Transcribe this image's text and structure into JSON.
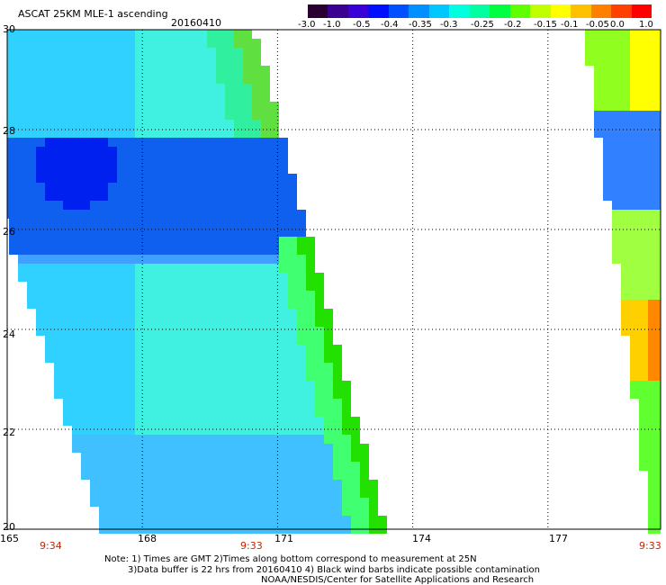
{
  "header": {
    "title": "ASCAT 25KM MLE-1 ascending",
    "date": "20160410"
  },
  "colorbar": {
    "labels": [
      "-3.0",
      "-1.0",
      "-0.5",
      "-0.4",
      "-0.35",
      "-0.3",
      "-0.25",
      "-0.2",
      "-0.15",
      "-0.1",
      "-0.05",
      "0.0",
      "1.0"
    ],
    "colors": [
      "#2a0030",
      "#3a0090",
      "#3a00d8",
      "#0010ff",
      "#0050ff",
      "#0090ff",
      "#00c8ff",
      "#00ffe0",
      "#00ffa0",
      "#00ff40",
      "#60ff00",
      "#c0ff00",
      "#ffff00",
      "#ffc000",
      "#ff8000",
      "#ff4000",
      "#ff0000"
    ]
  },
  "axes": {
    "lon_labels": [
      "165",
      "168",
      "171",
      "174",
      "177"
    ],
    "lat_labels": [
      "30",
      "28",
      "26",
      "24",
      "22",
      "20"
    ],
    "lon_range": [
      165,
      179.5
    ],
    "lat_range": [
      20,
      30
    ]
  },
  "times": [
    "9:34",
    "9:33",
    "9:33"
  ],
  "notes": [
    "Note: 1) Times are GMT 2)Times along bottom correspond to measurement at 25N",
    "3)Data buffer is 22 hrs from 20160410 4) Black wind barbs indicate possible contamination",
    "NOAA/NESDIS/Center for Satellite Applications and Research"
  ]
}
